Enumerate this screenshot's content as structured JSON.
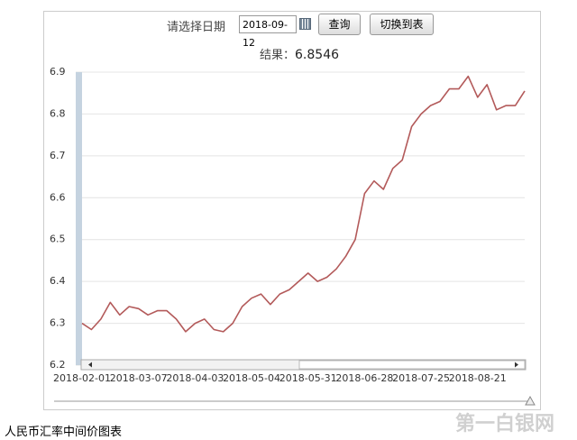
{
  "ui": {
    "date_label": "请选择日期",
    "date_value": "2018-09-12",
    "query_button": "查询",
    "toggle_button": "切换到表",
    "result_label": "结果：",
    "result_value": "6.8546",
    "caption": "人民币汇率中间价图表",
    "watermark": "第一白银网"
  },
  "chart_data": {
    "type": "line",
    "color": "#b35a5a",
    "grid": true,
    "categories": [
      "2018-02-01",
      null,
      null,
      null,
      null,
      null,
      "2018-03-07",
      null,
      null,
      null,
      null,
      null,
      "2018-04-03",
      null,
      null,
      null,
      null,
      null,
      "2018-05-04",
      null,
      null,
      null,
      null,
      null,
      "2018-05-31",
      null,
      null,
      null,
      null,
      null,
      "2018-06-28",
      null,
      null,
      null,
      null,
      null,
      "2018-07-25",
      null,
      null,
      null,
      null,
      null,
      "2018-08-21",
      null,
      null,
      null,
      null,
      null
    ],
    "values": [
      6.3,
      6.285,
      6.31,
      6.35,
      6.32,
      6.34,
      6.335,
      6.32,
      6.33,
      6.33,
      6.31,
      6.28,
      6.3,
      6.31,
      6.285,
      6.28,
      6.3,
      6.34,
      6.36,
      6.37,
      6.345,
      6.37,
      6.38,
      6.4,
      6.42,
      6.4,
      6.41,
      6.43,
      6.46,
      6.5,
      6.61,
      6.64,
      6.62,
      6.67,
      6.69,
      6.77,
      6.8,
      6.82,
      6.83,
      6.86,
      6.86,
      6.89,
      6.84,
      6.87,
      6.81,
      6.82,
      6.82,
      6.855
    ],
    "ylim": [
      6.2,
      6.9
    ],
    "yticks": [
      6.2,
      6.3,
      6.4,
      6.5,
      6.6,
      6.7,
      6.8,
      6.9
    ]
  }
}
